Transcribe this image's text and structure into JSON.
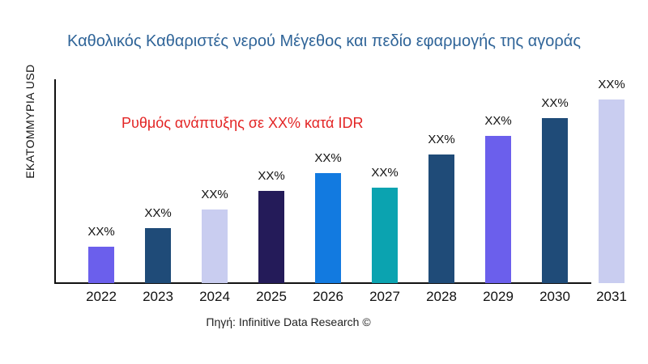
{
  "title": {
    "text": "Καθολικός Καθαριστές νερού Μέγεθος και πεδίο εφαρμογής της αγοράς",
    "color": "#2f6498"
  },
  "annotation": {
    "text": "Ρυθμός ανάπτυξης σε XX% κατά IDR",
    "color": "#e32525"
  },
  "source": {
    "text": "Πηγή: Infinitive Data Research ©"
  },
  "chart_data": {
    "type": "bar",
    "title": "Καθολικός Καθαριστές νερού Μέγεθος και πεδίο εφαρμογής της αγοράς",
    "ylabel": "ΕΚΑΤΟΜΜΥΡΙΑ USD",
    "xlabel": "",
    "categories": [
      "2022",
      "2023",
      "2024",
      "2025",
      "2026",
      "2027",
      "2028",
      "2029",
      "2030",
      "2031"
    ],
    "value_labels": [
      "XX%",
      "XX%",
      "XX%",
      "XX%",
      "XX%",
      "XX%",
      "XX%",
      "XX%",
      "XX%",
      "XX%"
    ],
    "values_relative": [
      20,
      30,
      40,
      50,
      60,
      52,
      70,
      80,
      90,
      100
    ],
    "bar_colors": [
      "#6b5fec",
      "#1f4b78",
      "#c9cdf0",
      "#241b59",
      "#127ae0",
      "#0ba3b0",
      "#1f4b78",
      "#6b5fec",
      "#1f4b78",
      "#c9cdf0"
    ],
    "annotation": "Ρυθμός ανάπτυξης σε XX% κατά IDR",
    "grid": false,
    "legend": false,
    "ylim": [
      0,
      100
    ]
  }
}
